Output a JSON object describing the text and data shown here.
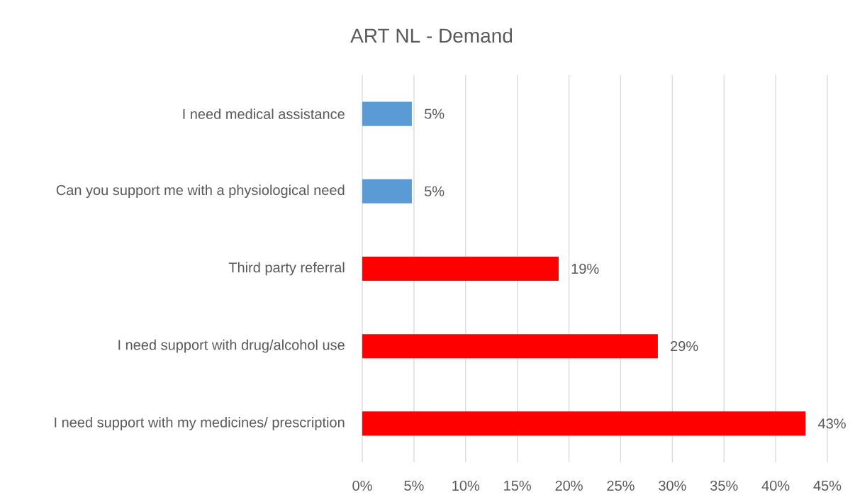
{
  "chart_data": {
    "type": "bar",
    "orientation": "horizontal",
    "title": "ART NL - Demand",
    "categories": [
      "I need medical assistance",
      "Can you support me with a physiological need",
      "Third party referral",
      "I need support with drug/alcohol use",
      "I need support with my medicines/ prescription"
    ],
    "values": [
      4.8,
      4.8,
      19.0,
      28.6,
      42.9
    ],
    "value_labels": [
      "5%",
      "5%",
      "19%",
      "29%",
      "43%"
    ],
    "colors": [
      "#5b9bd5",
      "#5b9bd5",
      "#ff0000",
      "#ff0000",
      "#ff0000"
    ],
    "xlim": [
      0,
      45
    ],
    "xticks": [
      {
        "value": 0,
        "label": "0%"
      },
      {
        "value": 5,
        "label": "5%"
      },
      {
        "value": 10,
        "label": "10%"
      },
      {
        "value": 15,
        "label": "15%"
      },
      {
        "value": 20,
        "label": "20%"
      },
      {
        "value": 25,
        "label": "25%"
      },
      {
        "value": 30,
        "label": "30%"
      },
      {
        "value": 35,
        "label": "35%"
      },
      {
        "value": 40,
        "label": "40%"
      },
      {
        "value": 45,
        "label": "45%"
      }
    ],
    "grid": "x"
  }
}
